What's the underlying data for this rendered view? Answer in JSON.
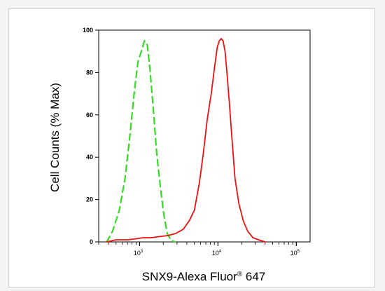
{
  "chart_data": {
    "type": "line",
    "title": "",
    "xlabel": {
      "prefix": "SNX9-Alexa Fluor",
      "sup": "®",
      "suffix": " 647"
    },
    "ylabel": "Cell Counts (% Max)",
    "x_scale": "log",
    "xlim": [
      300,
      150000
    ],
    "ylim": [
      0,
      100
    ],
    "y_ticks": [
      0,
      20,
      40,
      60,
      80,
      100
    ],
    "y_tick_labels": [
      "0",
      "20",
      "40",
      "60",
      "80",
      "100"
    ],
    "x_ticks": [
      1000,
      10000,
      100000
    ],
    "x_tick_labels": [
      {
        "base": "10",
        "exp": "3"
      },
      {
        "base": "10",
        "exp": "4"
      },
      {
        "base": "10",
        "exp": "5"
      }
    ],
    "grid": false,
    "series": [
      {
        "style": "dashed",
        "color": "#33dd22",
        "x": [
          380,
          450,
          550,
          650,
          750,
          850,
          950,
          1050,
          1150,
          1250,
          1350,
          1500,
          1650,
          1850,
          2050,
          2250,
          2500,
          2800
        ],
        "y": [
          0,
          5,
          15,
          30,
          50,
          70,
          85,
          90,
          95,
          93,
          82,
          62,
          42,
          25,
          12,
          4,
          1,
          0
        ]
      },
      {
        "style": "solid",
        "color": "#ee1111",
        "x": [
          380,
          500,
          700,
          900,
          1100,
          1400,
          1800,
          2300,
          2900,
          3600,
          4300,
          5000,
          5800,
          6500,
          7300,
          8200,
          9000,
          9800,
          10400,
          11000,
          11600,
          12300,
          13000,
          14000,
          15000,
          16500,
          18500,
          21000,
          24000,
          28000,
          33000,
          40000
        ],
        "y": [
          0,
          1,
          1,
          1.5,
          2,
          2,
          2.5,
          3,
          4,
          6,
          10,
          15,
          28,
          42,
          58,
          70,
          82,
          92,
          95,
          96,
          95,
          90,
          80,
          65,
          50,
          30,
          18,
          10,
          5,
          2,
          1,
          0
        ]
      }
    ]
  }
}
